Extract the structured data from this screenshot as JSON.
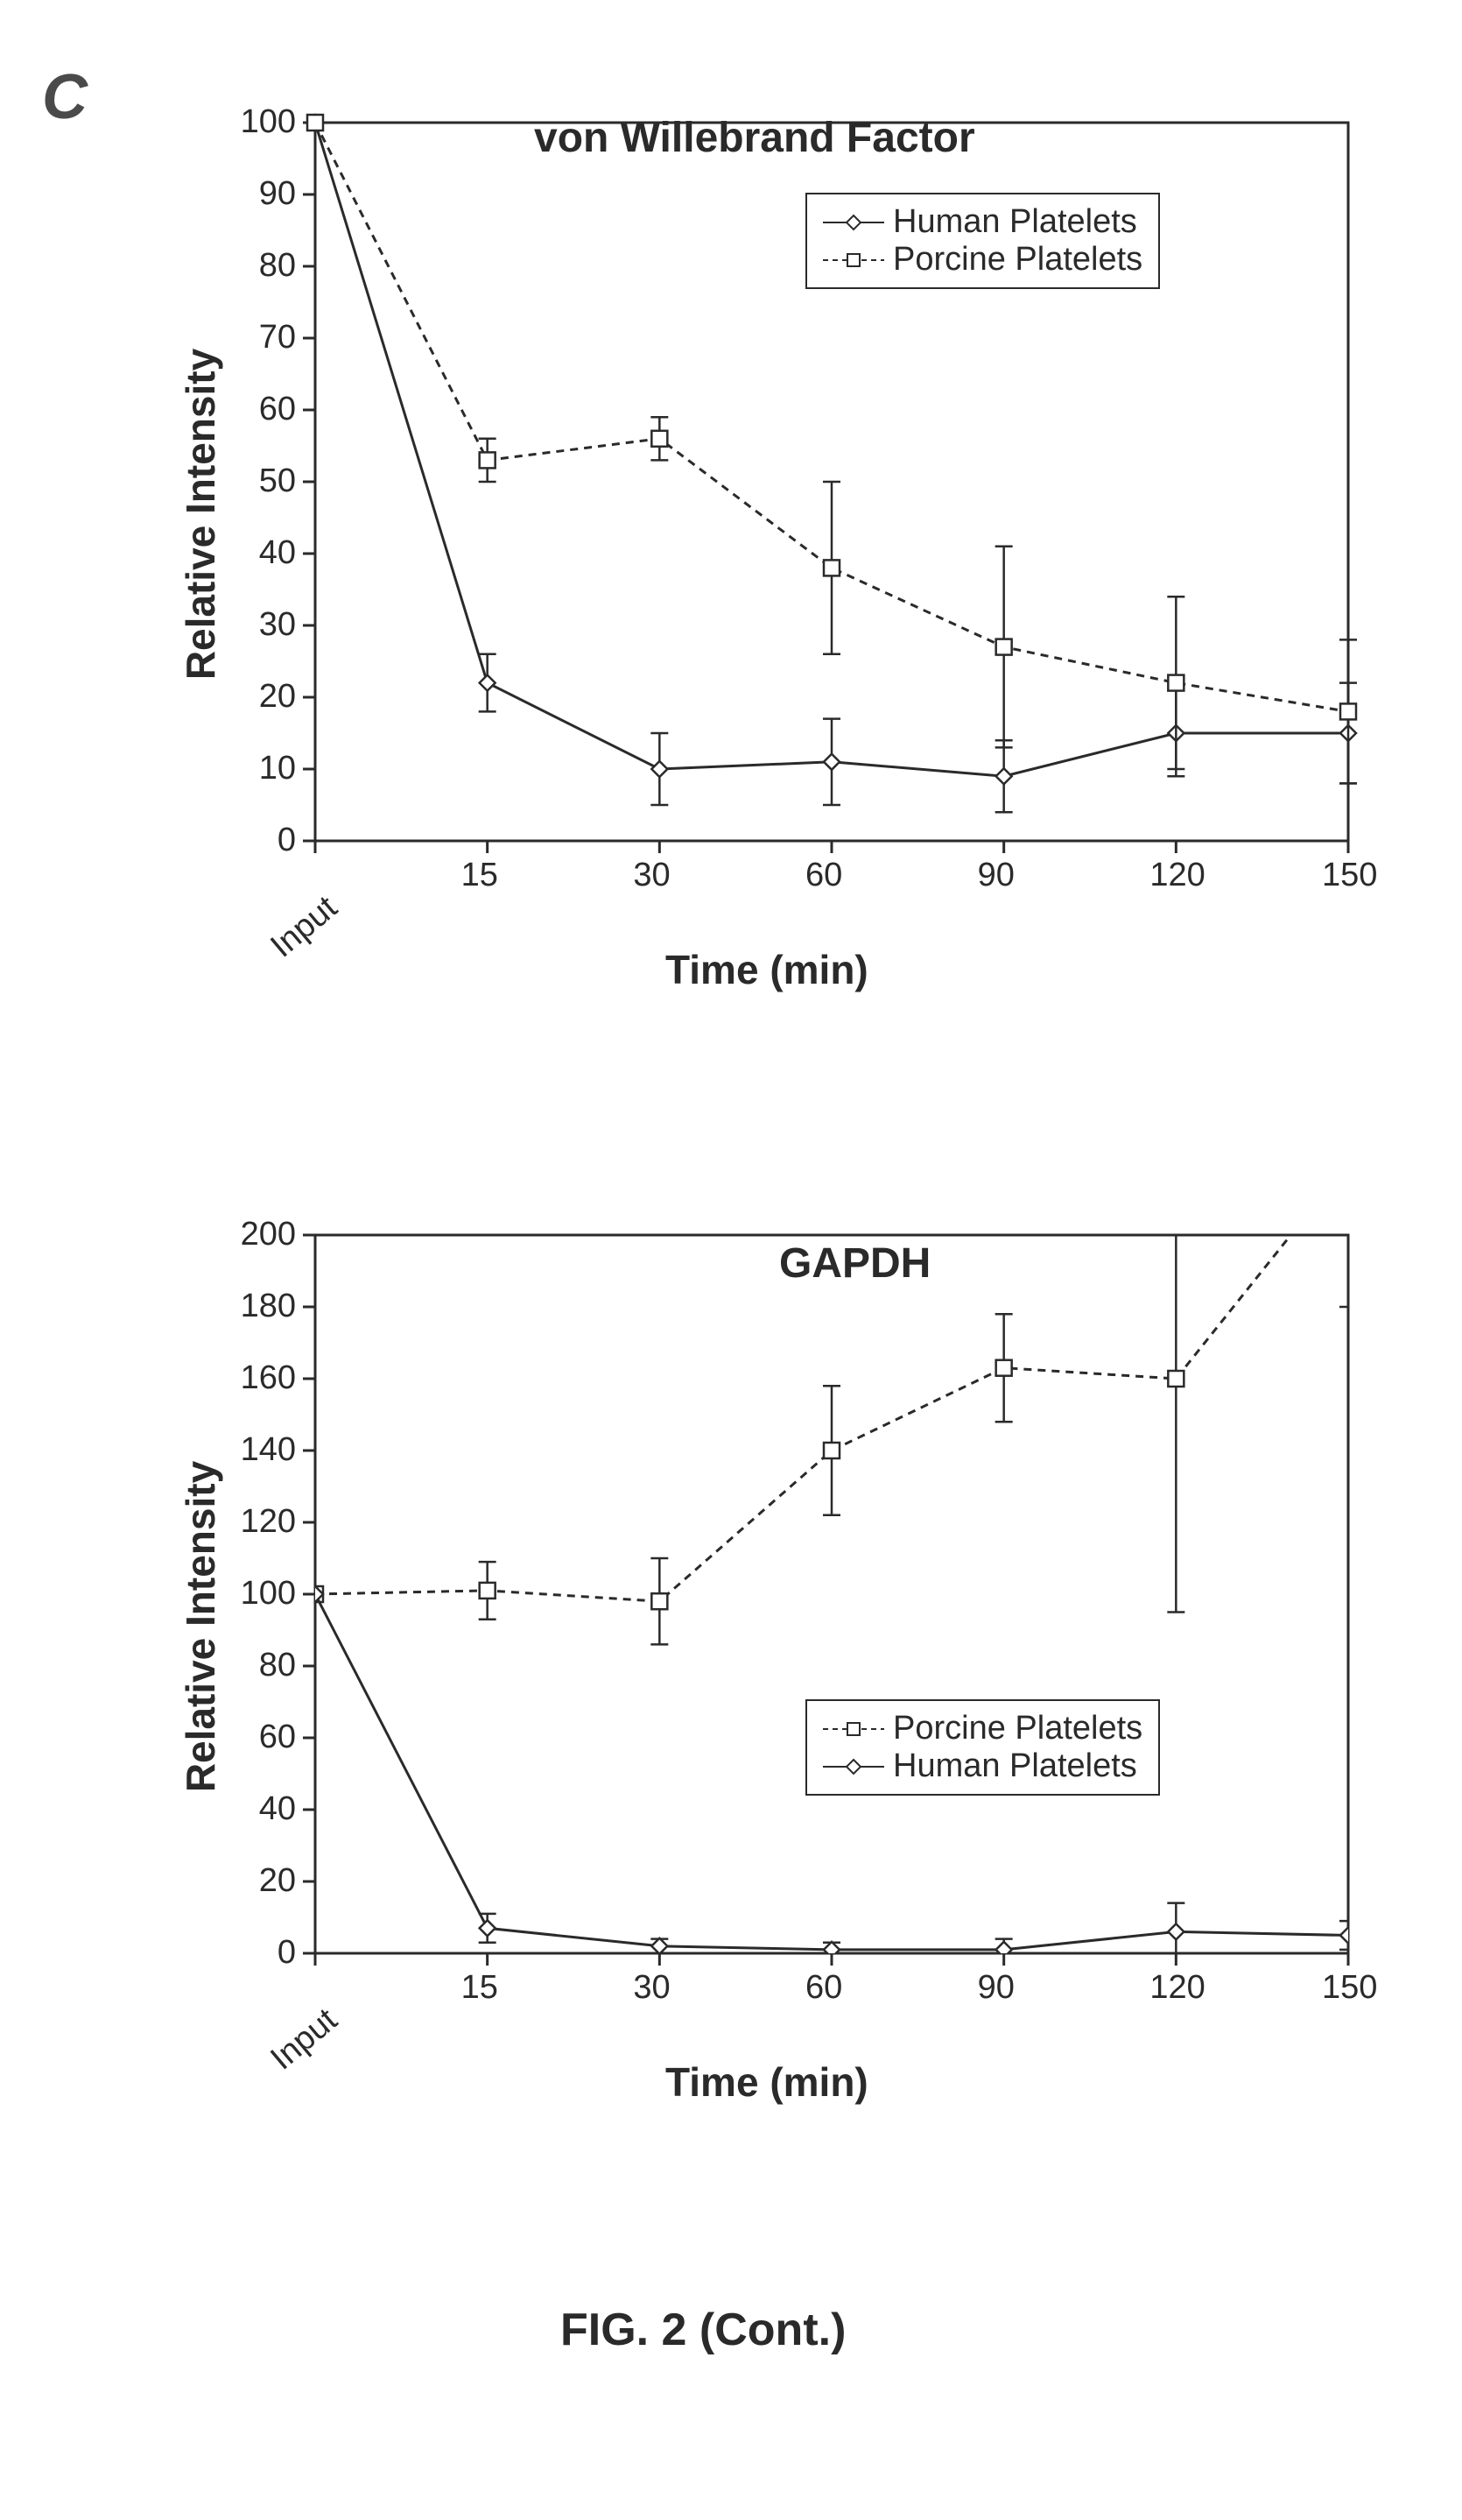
{
  "panel_label": "C",
  "figure_caption": "FIG. 2 (Cont.)",
  "chart1": {
    "type": "line",
    "title": "von Willebrand Factor",
    "title_fontsize": 48,
    "xlabel": "Time (min)",
    "ylabel": "Relative Intensity",
    "label_fontsize": 46,
    "x_categories": [
      "Input",
      "15",
      "30",
      "60",
      "90",
      "120",
      "150"
    ],
    "ylim": [
      0,
      100
    ],
    "yticks": [
      0,
      10,
      20,
      30,
      40,
      50,
      60,
      70,
      80,
      90,
      100
    ],
    "tick_fontsize": 38,
    "background_color": "#ffffff",
    "axis_color": "#2a2a2a",
    "line_width": 3,
    "marker_size": 18,
    "error_cap_width": 20,
    "series": [
      {
        "name": "Human Platelets",
        "marker": "diamond",
        "line_style": "solid",
        "color": "#2a2a2a",
        "fill": "#ffffff",
        "values": [
          100,
          22,
          10,
          11,
          9,
          15,
          15
        ],
        "errors": [
          0,
          4,
          5,
          6,
          5,
          6,
          7
        ]
      },
      {
        "name": "Porcine Platelets",
        "marker": "square",
        "line_style": "dashed",
        "color": "#2a2a2a",
        "fill": "#ffffff",
        "values": [
          100,
          53,
          56,
          38,
          27,
          22,
          18
        ],
        "errors": [
          0,
          3,
          3,
          12,
          14,
          12,
          10
        ]
      }
    ],
    "legend": {
      "items": [
        "Human Platelets",
        "Porcine Platelets"
      ],
      "position": "upper-right"
    }
  },
  "chart2": {
    "type": "line",
    "title": "GAPDH",
    "title_fontsize": 48,
    "xlabel": "Time (min)",
    "ylabel": "Relative Intensity",
    "label_fontsize": 46,
    "x_categories": [
      "Input",
      "15",
      "30",
      "60",
      "90",
      "120",
      "150"
    ],
    "ylim": [
      0,
      200
    ],
    "yticks": [
      0,
      20,
      40,
      60,
      80,
      100,
      120,
      140,
      160,
      180,
      200
    ],
    "tick_fontsize": 38,
    "background_color": "#ffffff",
    "axis_color": "#2a2a2a",
    "line_width": 3,
    "marker_size": 18,
    "error_cap_width": 20,
    "series": [
      {
        "name": "Porcine Platelets",
        "marker": "square",
        "line_style": "dashed",
        "color": "#2a2a2a",
        "fill": "#ffffff",
        "values": [
          100,
          101,
          98,
          140,
          163,
          160,
          220
        ],
        "errors": [
          0,
          8,
          12,
          18,
          15,
          65,
          40
        ]
      },
      {
        "name": "Human Platelets",
        "marker": "diamond",
        "line_style": "solid",
        "color": "#2a2a2a",
        "fill": "#ffffff",
        "values": [
          100,
          7,
          2,
          1,
          1,
          6,
          5
        ],
        "errors": [
          0,
          4,
          2,
          2,
          3,
          8,
          4
        ]
      }
    ],
    "legend": {
      "items": [
        "Porcine Platelets",
        "Human Platelets"
      ],
      "position": "lower-right"
    }
  }
}
